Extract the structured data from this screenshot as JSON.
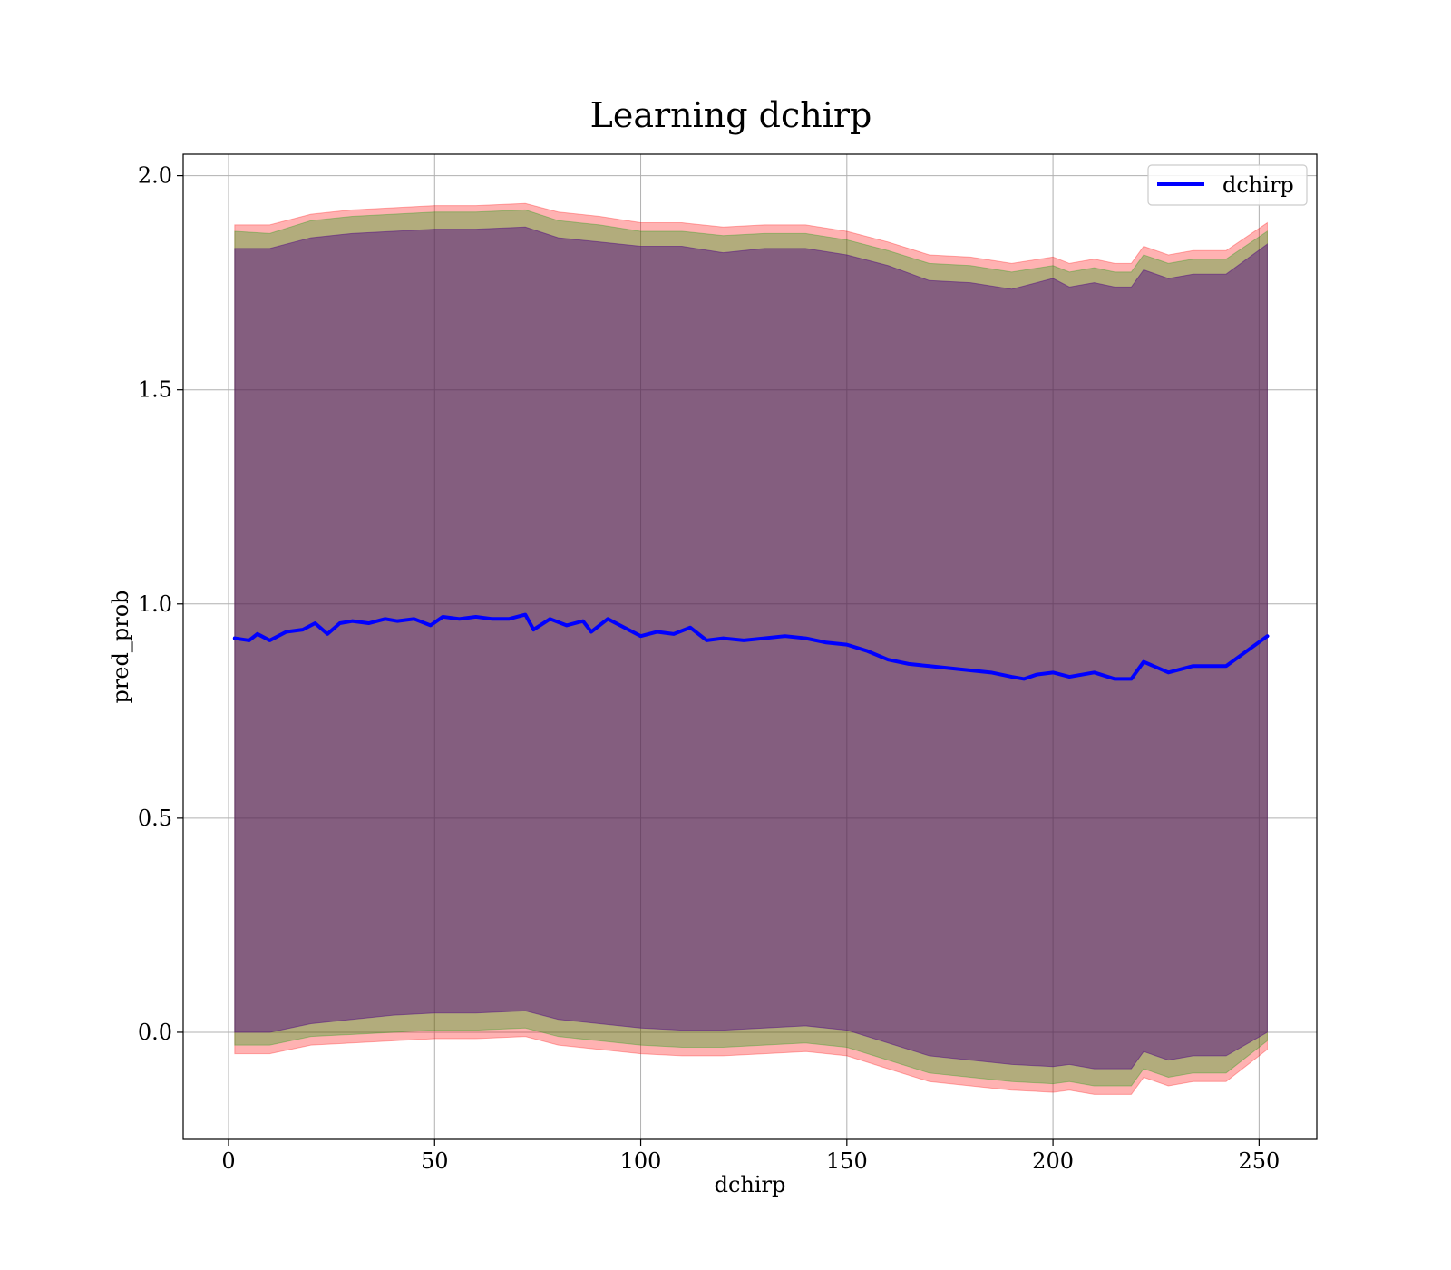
{
  "chart_data": {
    "type": "line",
    "title": "Learning dchirp",
    "xlabel": "dchirp",
    "ylabel": "pred_prob",
    "xlim": [
      -11,
      264
    ],
    "ylim": [
      -0.25,
      2.05
    ],
    "xticks": [
      0,
      50,
      100,
      150,
      200,
      250
    ],
    "xtick_labels": [
      "0",
      "50",
      "100",
      "150",
      "200",
      "250"
    ],
    "yticks": [
      0.0,
      0.5,
      1.0,
      1.5,
      2.0
    ],
    "ytick_labels": [
      "0.0",
      "0.5",
      "1.0",
      "1.5",
      "2.0"
    ],
    "grid": true,
    "legend": {
      "position": "top-right"
    },
    "series": [
      {
        "name": "dchirp",
        "color": "#0000ff",
        "x": [
          1.5,
          5,
          7,
          10,
          14,
          18,
          21,
          24,
          27,
          30,
          34,
          38,
          41,
          45,
          49,
          52,
          56,
          60,
          64,
          68,
          72,
          74,
          78,
          82,
          86,
          88,
          92,
          96,
          100,
          104,
          108,
          112,
          116,
          120,
          125,
          130,
          135,
          140,
          145,
          150,
          155,
          160,
          165,
          170,
          175,
          180,
          185,
          190,
          193,
          196,
          200,
          204,
          210,
          215,
          219,
          222,
          228,
          234,
          242,
          252
        ],
        "y": [
          0.92,
          0.915,
          0.93,
          0.915,
          0.935,
          0.94,
          0.955,
          0.93,
          0.955,
          0.96,
          0.955,
          0.965,
          0.96,
          0.965,
          0.95,
          0.97,
          0.965,
          0.97,
          0.965,
          0.965,
          0.975,
          0.94,
          0.965,
          0.95,
          0.96,
          0.935,
          0.965,
          0.945,
          0.925,
          0.935,
          0.93,
          0.945,
          0.915,
          0.92,
          0.915,
          0.92,
          0.925,
          0.92,
          0.91,
          0.905,
          0.89,
          0.87,
          0.86,
          0.855,
          0.85,
          0.845,
          0.84,
          0.83,
          0.825,
          0.835,
          0.84,
          0.83,
          0.84,
          0.825,
          0.825,
          0.865,
          0.84,
          0.855,
          0.855,
          0.925
        ]
      }
    ],
    "bands": [
      {
        "color": "#ff0000",
        "opacity": 0.3,
        "x": [
          1.5,
          10,
          20,
          30,
          40,
          50,
          60,
          72,
          80,
          90,
          100,
          110,
          120,
          130,
          140,
          150,
          160,
          170,
          180,
          190,
          200,
          204,
          210,
          215,
          219,
          222,
          228,
          234,
          242,
          252
        ],
        "upper": [
          1.885,
          1.885,
          1.91,
          1.92,
          1.925,
          1.93,
          1.93,
          1.935,
          1.915,
          1.905,
          1.89,
          1.89,
          1.88,
          1.885,
          1.885,
          1.87,
          1.845,
          1.815,
          1.81,
          1.795,
          1.81,
          1.795,
          1.805,
          1.795,
          1.795,
          1.835,
          1.815,
          1.825,
          1.825,
          1.89
        ],
        "lower": [
          -0.05,
          -0.05,
          -0.03,
          -0.025,
          -0.02,
          -0.015,
          -0.015,
          -0.01,
          -0.03,
          -0.04,
          -0.05,
          -0.055,
          -0.055,
          -0.05,
          -0.045,
          -0.055,
          -0.085,
          -0.115,
          -0.125,
          -0.135,
          -0.14,
          -0.135,
          -0.145,
          -0.145,
          -0.145,
          -0.105,
          -0.125,
          -0.115,
          -0.115,
          -0.04
        ]
      },
      {
        "color": "#00a000",
        "opacity": 0.3,
        "x": [
          1.5,
          10,
          20,
          30,
          40,
          50,
          60,
          72,
          80,
          90,
          100,
          110,
          120,
          130,
          140,
          150,
          160,
          170,
          180,
          190,
          200,
          204,
          210,
          215,
          219,
          222,
          228,
          234,
          242,
          252
        ],
        "upper": [
          1.87,
          1.865,
          1.895,
          1.905,
          1.91,
          1.915,
          1.915,
          1.92,
          1.895,
          1.885,
          1.87,
          1.87,
          1.86,
          1.865,
          1.865,
          1.85,
          1.825,
          1.795,
          1.79,
          1.775,
          1.79,
          1.775,
          1.785,
          1.775,
          1.775,
          1.815,
          1.795,
          1.805,
          1.805,
          1.87
        ],
        "lower": [
          -0.03,
          -0.03,
          -0.01,
          -0.005,
          0.0,
          0.005,
          0.005,
          0.01,
          -0.01,
          -0.02,
          -0.03,
          -0.035,
          -0.035,
          -0.03,
          -0.025,
          -0.035,
          -0.065,
          -0.095,
          -0.105,
          -0.115,
          -0.12,
          -0.115,
          -0.125,
          -0.125,
          -0.125,
          -0.085,
          -0.105,
          -0.095,
          -0.095,
          -0.02
        ]
      },
      {
        "color": "#4b0082",
        "opacity": 0.45,
        "x": [
          1.5,
          10,
          20,
          30,
          40,
          50,
          60,
          72,
          80,
          90,
          100,
          110,
          120,
          130,
          140,
          150,
          160,
          170,
          180,
          190,
          200,
          204,
          210,
          215,
          219,
          222,
          228,
          234,
          242,
          252
        ],
        "upper": [
          1.83,
          1.83,
          1.855,
          1.865,
          1.87,
          1.875,
          1.875,
          1.88,
          1.855,
          1.845,
          1.835,
          1.835,
          1.82,
          1.83,
          1.83,
          1.815,
          1.79,
          1.755,
          1.75,
          1.735,
          1.76,
          1.74,
          1.75,
          1.74,
          1.74,
          1.78,
          1.76,
          1.77,
          1.77,
          1.84
        ],
        "lower": [
          0.0,
          0.0,
          0.02,
          0.03,
          0.04,
          0.045,
          0.045,
          0.05,
          0.03,
          0.02,
          0.01,
          0.005,
          0.005,
          0.01,
          0.015,
          0.005,
          -0.025,
          -0.055,
          -0.065,
          -0.075,
          -0.08,
          -0.075,
          -0.085,
          -0.085,
          -0.085,
          -0.045,
          -0.065,
          -0.055,
          -0.055,
          0.0
        ]
      }
    ]
  }
}
